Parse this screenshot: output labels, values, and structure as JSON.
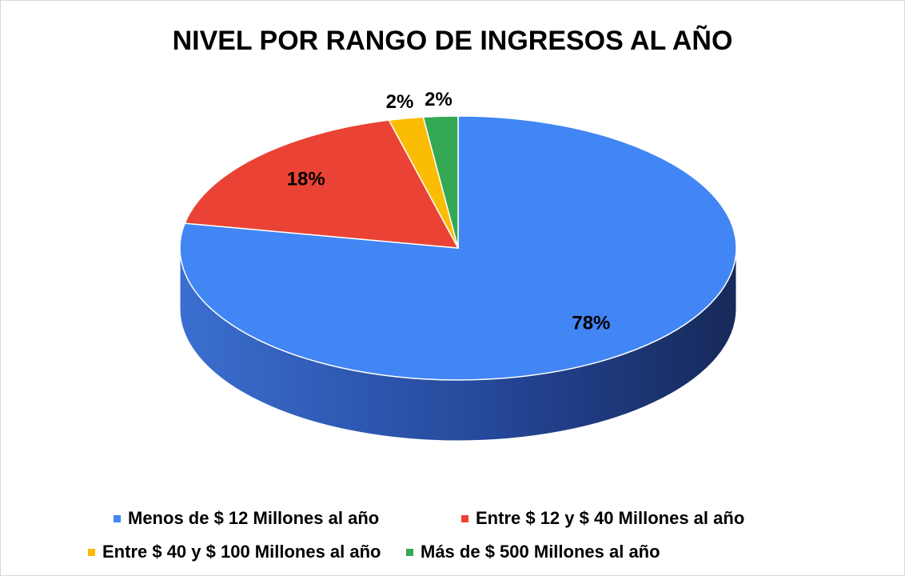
{
  "chart_data": {
    "type": "pie",
    "title": "NIVEL POR RANGO DE INGRESOS AL AÑO",
    "categories": [
      "Menos de $ 12 Millones al año",
      "Entre $ 12 y $ 40 Millones al año",
      "Entre $ 40 y $ 100 Millones al año",
      "Más de $ 500 Millones al año"
    ],
    "values": [
      78,
      18,
      2,
      2
    ],
    "value_labels": [
      "78%",
      "18%",
      "2%",
      "2%"
    ],
    "colors": [
      "#4285f4",
      "#ea4335",
      "#fbbc04",
      "#34a853"
    ],
    "legend": "bottom"
  }
}
